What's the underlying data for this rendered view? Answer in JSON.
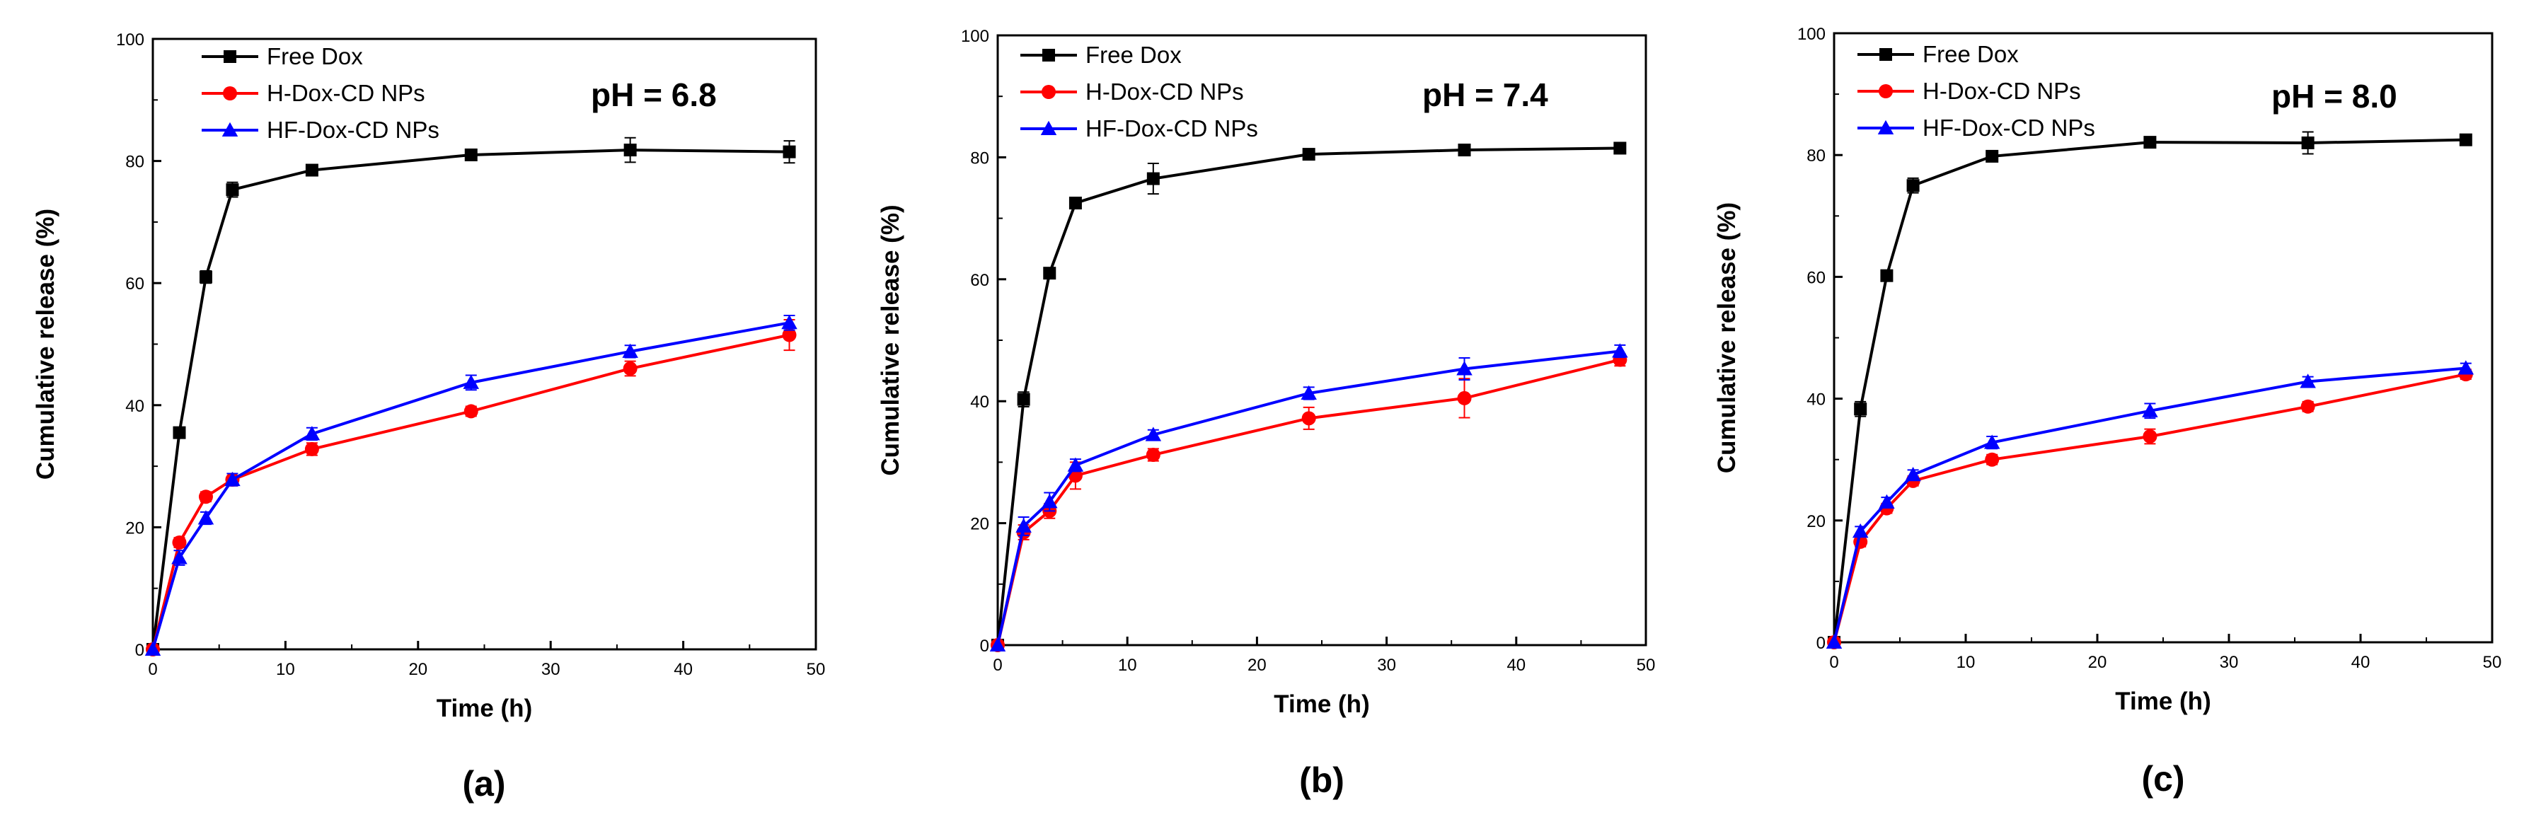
{
  "chart_data": [
    {
      "type": "line",
      "panel_label": "(a)",
      "annotation": "pH = 6.8",
      "xlabel": "Time (h)",
      "ylabel": "Cumulative release (%)",
      "xlim": [
        0,
        50
      ],
      "ylim": [
        0,
        100
      ],
      "xticks": [
        "0",
        "10",
        "20",
        "30",
        "40",
        "50"
      ],
      "yticks": [
        "0",
        "20",
        "40",
        "60",
        "80",
        "100"
      ],
      "legend_position": "top-left",
      "grid": false,
      "x": [
        0,
        2,
        4,
        6,
        12,
        24,
        36,
        48
      ],
      "series": [
        {
          "name": "Free Dox",
          "color": "#000000",
          "marker": "square",
          "values": [
            0,
            35.5,
            61,
            75.3,
            78.5,
            81,
            81.8,
            81.5
          ],
          "errors": [
            0,
            0.8,
            1.0,
            1.2,
            0.8,
            0.8,
            2.0,
            1.8
          ]
        },
        {
          "name": "H-Dox-CD NPs",
          "color": "#ff0000",
          "marker": "circle",
          "values": [
            0,
            17.5,
            25,
            27.8,
            32.8,
            39,
            46,
            51.5
          ],
          "errors": [
            0,
            0.8,
            0.8,
            1.0,
            1.0,
            0.8,
            1.2,
            2.5
          ]
        },
        {
          "name": "HF-Dox-CD NPs",
          "color": "#0000ff",
          "marker": "triangle",
          "values": [
            0,
            15,
            21.5,
            27.8,
            35.3,
            43.7,
            48.8,
            53.5
          ],
          "errors": [
            0,
            1.2,
            1.0,
            1.0,
            1.0,
            1.2,
            1.0,
            1.2
          ]
        }
      ]
    },
    {
      "type": "line",
      "panel_label": "(b)",
      "annotation": "pH = 7.4",
      "xlabel": "Time (h)",
      "ylabel": "Cumulative release (%)",
      "xlim": [
        0,
        50
      ],
      "ylim": [
        0,
        100
      ],
      "xticks": [
        "0",
        "10",
        "20",
        "30",
        "40",
        "50"
      ],
      "yticks": [
        "0",
        "20",
        "40",
        "60",
        "80",
        "100"
      ],
      "legend_position": "top-left",
      "grid": false,
      "x": [
        0,
        2,
        4,
        6,
        12,
        24,
        36,
        48
      ],
      "series": [
        {
          "name": "Free Dox",
          "color": "#000000",
          "marker": "square",
          "values": [
            0,
            40.3,
            61,
            72.5,
            76.5,
            80.5,
            81.2,
            81.5
          ],
          "errors": [
            0,
            1.2,
            0.8,
            0.8,
            2.5,
            0.8,
            0.8,
            0.8
          ]
        },
        {
          "name": "H-Dox-CD NPs",
          "color": "#ff0000",
          "marker": "circle",
          "values": [
            0,
            18.5,
            22,
            27.8,
            31.2,
            37.2,
            40.5,
            46.8
          ],
          "errors": [
            0,
            1.2,
            1.2,
            2.2,
            1.0,
            1.8,
            3.2,
            1.0
          ]
        },
        {
          "name": "HF-Dox-CD NPs",
          "color": "#0000ff",
          "marker": "triangle",
          "values": [
            0,
            19.5,
            23.5,
            29.5,
            34.5,
            41.3,
            45.3,
            48.2
          ],
          "errors": [
            0,
            1.5,
            1.5,
            1.0,
            0.8,
            1.0,
            1.8,
            1.0
          ]
        }
      ]
    },
    {
      "type": "line",
      "panel_label": "(c)",
      "annotation": "pH = 8.0",
      "xlabel": "Time (h)",
      "ylabel": "Cumulative release (%)",
      "xlim": [
        0,
        50
      ],
      "ylim": [
        0,
        100
      ],
      "xticks": [
        "0",
        "10",
        "20",
        "30",
        "40",
        "50"
      ],
      "yticks": [
        "0",
        "20",
        "40",
        "60",
        "80",
        "100"
      ],
      "legend_position": "top-left",
      "grid": false,
      "x": [
        0,
        2,
        4,
        6,
        12,
        24,
        36,
        48
      ],
      "series": [
        {
          "name": "Free Dox",
          "color": "#000000",
          "marker": "square",
          "values": [
            0,
            38.3,
            60.2,
            75,
            79.8,
            82.1,
            82,
            82.5
          ],
          "errors": [
            0,
            1.2,
            0.8,
            1.2,
            0.8,
            0.8,
            1.8,
            0.8
          ]
        },
        {
          "name": "H-Dox-CD NPs",
          "color": "#ff0000",
          "marker": "circle",
          "values": [
            0,
            16.5,
            22,
            26.5,
            30,
            33.8,
            38.7,
            44
          ],
          "errors": [
            0,
            0.8,
            0.8,
            0.8,
            0.8,
            1.2,
            0.8,
            0.8
          ]
        },
        {
          "name": "HF-Dox-CD NPs",
          "color": "#0000ff",
          "marker": "triangle",
          "values": [
            0,
            18.2,
            23,
            27.5,
            32.8,
            38,
            42.8,
            45
          ],
          "errors": [
            0,
            0.8,
            0.8,
            0.8,
            1.0,
            1.2,
            0.8,
            0.8
          ]
        }
      ]
    }
  ]
}
